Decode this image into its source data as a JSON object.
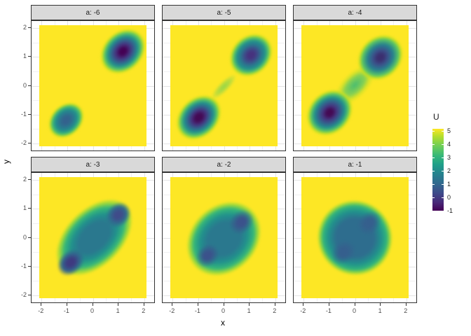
{
  "axes": {
    "x_label": "x",
    "y_label": "y",
    "x_tick_labels": [
      "-2",
      "-1",
      "0",
      "1",
      "2"
    ],
    "y_tick_labels": [
      "2",
      "1",
      "0",
      "-1",
      "-2"
    ]
  },
  "legend": {
    "title": "U",
    "tick_labels": [
      "5",
      "4",
      "3",
      "2",
      "1",
      "0",
      "-1"
    ]
  },
  "chart_data": {
    "type": "heatmap",
    "title": "",
    "facet_variable": "a",
    "xlabel": "x",
    "ylabel": "y",
    "fill_label": "U",
    "x_range": [
      -2.1,
      2.1
    ],
    "y_range": [
      -2.1,
      2.1
    ],
    "u_range": [
      -1,
      5
    ],
    "x_breaks": [
      -2,
      -1,
      0,
      1,
      2
    ],
    "y_breaks": [
      -2,
      -1,
      0,
      1,
      2
    ],
    "minor_breaks": [
      -1.5,
      -0.5,
      0.5,
      1.5
    ],
    "colormap": "viridis",
    "background_value": 5,
    "background_color": "#fde725",
    "legend_position": "right",
    "colorbar": {
      "ticks": [
        5,
        4,
        3,
        2,
        1,
        0,
        -1
      ],
      "gradient": [
        {
          "c": "#fde725",
          "p": 0
        },
        {
          "c": "#b5de2b",
          "p": 9
        },
        {
          "c": "#6ece58",
          "p": 21
        },
        {
          "c": "#35b779",
          "p": 33
        },
        {
          "c": "#1f9e89",
          "p": 44
        },
        {
          "c": "#26828e",
          "p": 55
        },
        {
          "c": "#31688e",
          "p": 67
        },
        {
          "c": "#3e4989",
          "p": 79
        },
        {
          "c": "#482878",
          "p": 90
        },
        {
          "c": "#440154",
          "p": 100
        }
      ]
    },
    "facets": [
      {
        "label": "a: -6",
        "a": -6,
        "minima": [
          {
            "x": 1.2,
            "y": 1.2,
            "u": -1.0
          },
          {
            "x": -1.0,
            "y": -1.2,
            "u": 0.7
          }
        ],
        "blobs": [
          {
            "cx": 1.18,
            "cy": 1.2,
            "rx": 1.02,
            "ry": 0.72,
            "rot": -45,
            "stops": [
              "#440154 0%",
              "#440154 13%",
              "#46327e 30%",
              "#365c8d 45%",
              "#21918c 62%",
              "#5ec962 78%",
              "#c8e020 87%",
              "rgba(253,231,37,0) 96%"
            ]
          },
          {
            "cx": -1.03,
            "cy": -1.2,
            "rx": 0.8,
            "ry": 0.56,
            "rot": -45,
            "stops": [
              "#33628d 0%",
              "#33628d 18%",
              "#2a788e 40%",
              "#21918c 58%",
              "#4ac16d 76%",
              "#c8e020 87%",
              "rgba(253,231,37,0) 96%"
            ]
          }
        ]
      },
      {
        "label": "a: -5",
        "a": -5,
        "minima": [
          {
            "x": 1.05,
            "y": 1.05,
            "u": -0.6
          },
          {
            "x": -1.0,
            "y": -1.1,
            "u": -0.9
          }
        ],
        "blobs": [
          {
            "cx": 1.05,
            "cy": 1.07,
            "rx": 0.95,
            "ry": 0.7,
            "rot": -45,
            "stops": [
              "#46327e 0%",
              "#46327e 14%",
              "#3b528b 32%",
              "#2a788e 47%",
              "#21918c 62%",
              "#5ec962 78%",
              "#c8e020 87%",
              "rgba(253,231,37,0) 96%"
            ]
          },
          {
            "cx": -1.0,
            "cy": -1.1,
            "rx": 1.02,
            "ry": 0.7,
            "rot": -45,
            "stops": [
              "#440a54 0%",
              "#440a54 15%",
              "#46327e 31%",
              "#33628d 46%",
              "#21918c 62%",
              "#5ec962 78%",
              "#c8e020 87%",
              "rgba(253,231,37,0) 96%"
            ]
          },
          {
            "cx": 0.0,
            "cy": -0.05,
            "rx": 0.72,
            "ry": 0.2,
            "rot": -45,
            "stops": [
              "rgba(122,209,81,0.8) 0%",
              "rgba(122,209,81,0.5) 50%",
              "rgba(253,231,37,0) 92%"
            ]
          }
        ]
      },
      {
        "label": "a: -4",
        "a": -4,
        "minima": [
          {
            "x": 1.0,
            "y": 1.0,
            "u": -0.5
          },
          {
            "x": -1.0,
            "y": -0.95,
            "u": -0.7
          }
        ],
        "blobs": [
          {
            "cx": 0.0,
            "cy": 0.02,
            "rx": 1.05,
            "ry": 0.48,
            "rot": -45,
            "stops": [
              "rgba(53,183,121,0.9) 0%",
              "rgba(94,201,98,0.75) 45%",
              "rgba(181,222,43,0.5) 70%",
              "rgba(253,231,37,0) 93%"
            ]
          },
          {
            "cx": 1.0,
            "cy": 1.0,
            "rx": 1.0,
            "ry": 0.75,
            "rot": -45,
            "stops": [
              "#3b2f6f 0%",
              "#3b2f6f 13%",
              "#3b528b 32%",
              "#26828e 54%",
              "#5ec962 77%",
              "#c8e020 87%",
              "rgba(253,231,37,0) 96%"
            ]
          },
          {
            "cx": -1.0,
            "cy": -0.95,
            "rx": 1.02,
            "ry": 0.76,
            "rot": -45,
            "stops": [
              "#440a54 0%",
              "#440a54 13%",
              "#453781 29%",
              "#33628d 46%",
              "#21918c 62%",
              "#5ec962 78%",
              "#c8e020 87%",
              "rgba(253,231,37,0) 96%"
            ]
          }
        ]
      },
      {
        "label": "a: -3",
        "a": -3,
        "minima": [
          {
            "x": -0.85,
            "y": -0.85,
            "u": -0.2
          },
          {
            "x": 1.0,
            "y": 0.8,
            "u": 0.1
          }
        ],
        "blobs": [
          {
            "cx": 0.05,
            "cy": 0.0,
            "rx": 1.9,
            "ry": 1.05,
            "rot": -45,
            "stops": [
              "#2a788e 0%",
              "#2a788e 38%",
              "#21918c 56%",
              "#35b779 73%",
              "#a5db36 86%",
              "rgba(253,231,37,0) 95%"
            ]
          },
          {
            "cx": -0.85,
            "cy": -0.85,
            "rx": 0.68,
            "ry": 0.46,
            "rot": -45,
            "stops": [
              "#3e3a80 0%",
              "#3e3a80 24%",
              "#33628d 54%",
              "rgba(42,120,142,0) 88%"
            ]
          },
          {
            "cx": 1.0,
            "cy": 0.8,
            "rx": 0.62,
            "ry": 0.46,
            "rot": -45,
            "stops": [
              "#3f4c8a 0%",
              "#3f4c8a 24%",
              "#31688e 54%",
              "rgba(42,120,142,0) 88%"
            ]
          }
        ]
      },
      {
        "label": "a: -2",
        "a": -2,
        "minima": [
          {
            "x": -0.65,
            "y": -0.65,
            "u": 0.5
          },
          {
            "x": 0.7,
            "y": 0.55,
            "u": 0.4
          }
        ],
        "blobs": [
          {
            "cx": 0.0,
            "cy": -0.05,
            "rx": 1.68,
            "ry": 1.22,
            "rot": -45,
            "stops": [
              "#2a788e 0%",
              "#2a788e 42%",
              "#21918c 60%",
              "#35b779 76%",
              "#a5db36 87%",
              "rgba(253,231,37,0) 95%"
            ]
          },
          {
            "cx": -0.63,
            "cy": -0.63,
            "rx": 0.58,
            "ry": 0.44,
            "rot": -45,
            "stops": [
              "#3b528b 0%",
              "#3b528b 28%",
              "rgba(49,104,142,0) 85%"
            ]
          },
          {
            "cx": 0.68,
            "cy": 0.55,
            "rx": 0.62,
            "ry": 0.46,
            "rot": -45,
            "stops": [
              "#3b528b 0%",
              "#3b528b 28%",
              "rgba(49,104,142,0) 85%"
            ]
          }
        ]
      },
      {
        "label": "a: -1",
        "a": -1,
        "minima": [
          {
            "x": 0.0,
            "y": 0.0,
            "u": 1.0
          }
        ],
        "blobs": [
          {
            "cx": 0.0,
            "cy": 0.0,
            "rx": 1.52,
            "ry": 1.38,
            "rot": -45,
            "stops": [
              "#2e6d8e 0%",
              "#2e6d8e 48%",
              "#21918c 67%",
              "#31b57b 81%",
              "#a5db36 90%",
              "rgba(253,231,37,0) 96%"
            ]
          },
          {
            "cx": -0.45,
            "cy": -0.5,
            "rx": 0.6,
            "ry": 0.45,
            "rot": -45,
            "stops": [
              "#355f8d 0%",
              "#355f8d 30%",
              "rgba(49,104,142,0) 85%"
            ]
          },
          {
            "cx": 0.55,
            "cy": 0.5,
            "rx": 0.6,
            "ry": 0.45,
            "rot": -45,
            "stops": [
              "#355f8d 0%",
              "#355f8d 30%",
              "rgba(49,104,142,0) 85%"
            ]
          }
        ]
      }
    ]
  }
}
